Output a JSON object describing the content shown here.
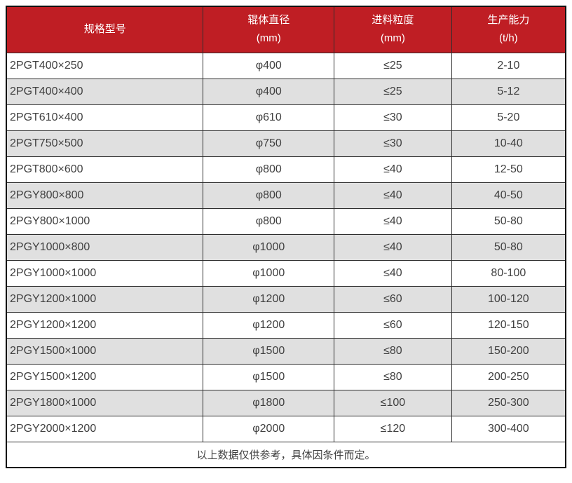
{
  "chart_data": {
    "type": "table",
    "columns": [
      {
        "label": "规格型号",
        "unit": ""
      },
      {
        "label": "辊体直径",
        "unit": "(mm)"
      },
      {
        "label": "进料粒度",
        "unit": "(mm)"
      },
      {
        "label": "生产能力",
        "unit": "(t/h)"
      }
    ],
    "rows": [
      [
        "2PGT400×250",
        "φ400",
        "≤25",
        "2-10"
      ],
      [
        "2PGT400×400",
        "φ400",
        "≤25",
        "5-12"
      ],
      [
        "2PGT610×400",
        "φ610",
        "≤30",
        "5-20"
      ],
      [
        "2PGT750×500",
        "φ750",
        "≤30",
        "10-40"
      ],
      [
        "2PGT800×600",
        "φ800",
        "≤40",
        "12-50"
      ],
      [
        "2PGY800×800",
        "φ800",
        "≤40",
        "40-50"
      ],
      [
        "2PGY800×1000",
        "φ800",
        "≤40",
        "50-80"
      ],
      [
        "2PGY1000×800",
        "φ1000",
        "≤40",
        "50-80"
      ],
      [
        "2PGY1000×1000",
        "φ1000",
        "≤40",
        "80-100"
      ],
      [
        "2PGY1200×1000",
        "φ1200",
        "≤60",
        "100-120"
      ],
      [
        "2PGY1200×1200",
        "φ1200",
        "≤60",
        "120-150"
      ],
      [
        "2PGY1500×1000",
        "φ1500",
        "≤80",
        "150-200"
      ],
      [
        "2PGY1500×1200",
        "φ1500",
        "≤80",
        "200-250"
      ],
      [
        "2PGY1800×1000",
        "φ1800",
        "≤100",
        "250-300"
      ],
      [
        "2PGY2000×1200",
        "φ2000",
        "≤120",
        "300-400"
      ]
    ],
    "footnote": "以上数据仅供参考，具体因条件而定。",
    "layout": {
      "stripe_start": "white",
      "column_widths_percent": [
        35.2,
        23.4,
        21.0,
        20.4
      ]
    }
  },
  "colors": {
    "header_bg": "#bf1e24",
    "header_text": "#ffffff",
    "row_alt_bg": "#e0e0e0",
    "row_bg": "#ffffff",
    "border": "#2e2e2e",
    "outer_border": "#111111",
    "text": "#3f3f3f"
  }
}
